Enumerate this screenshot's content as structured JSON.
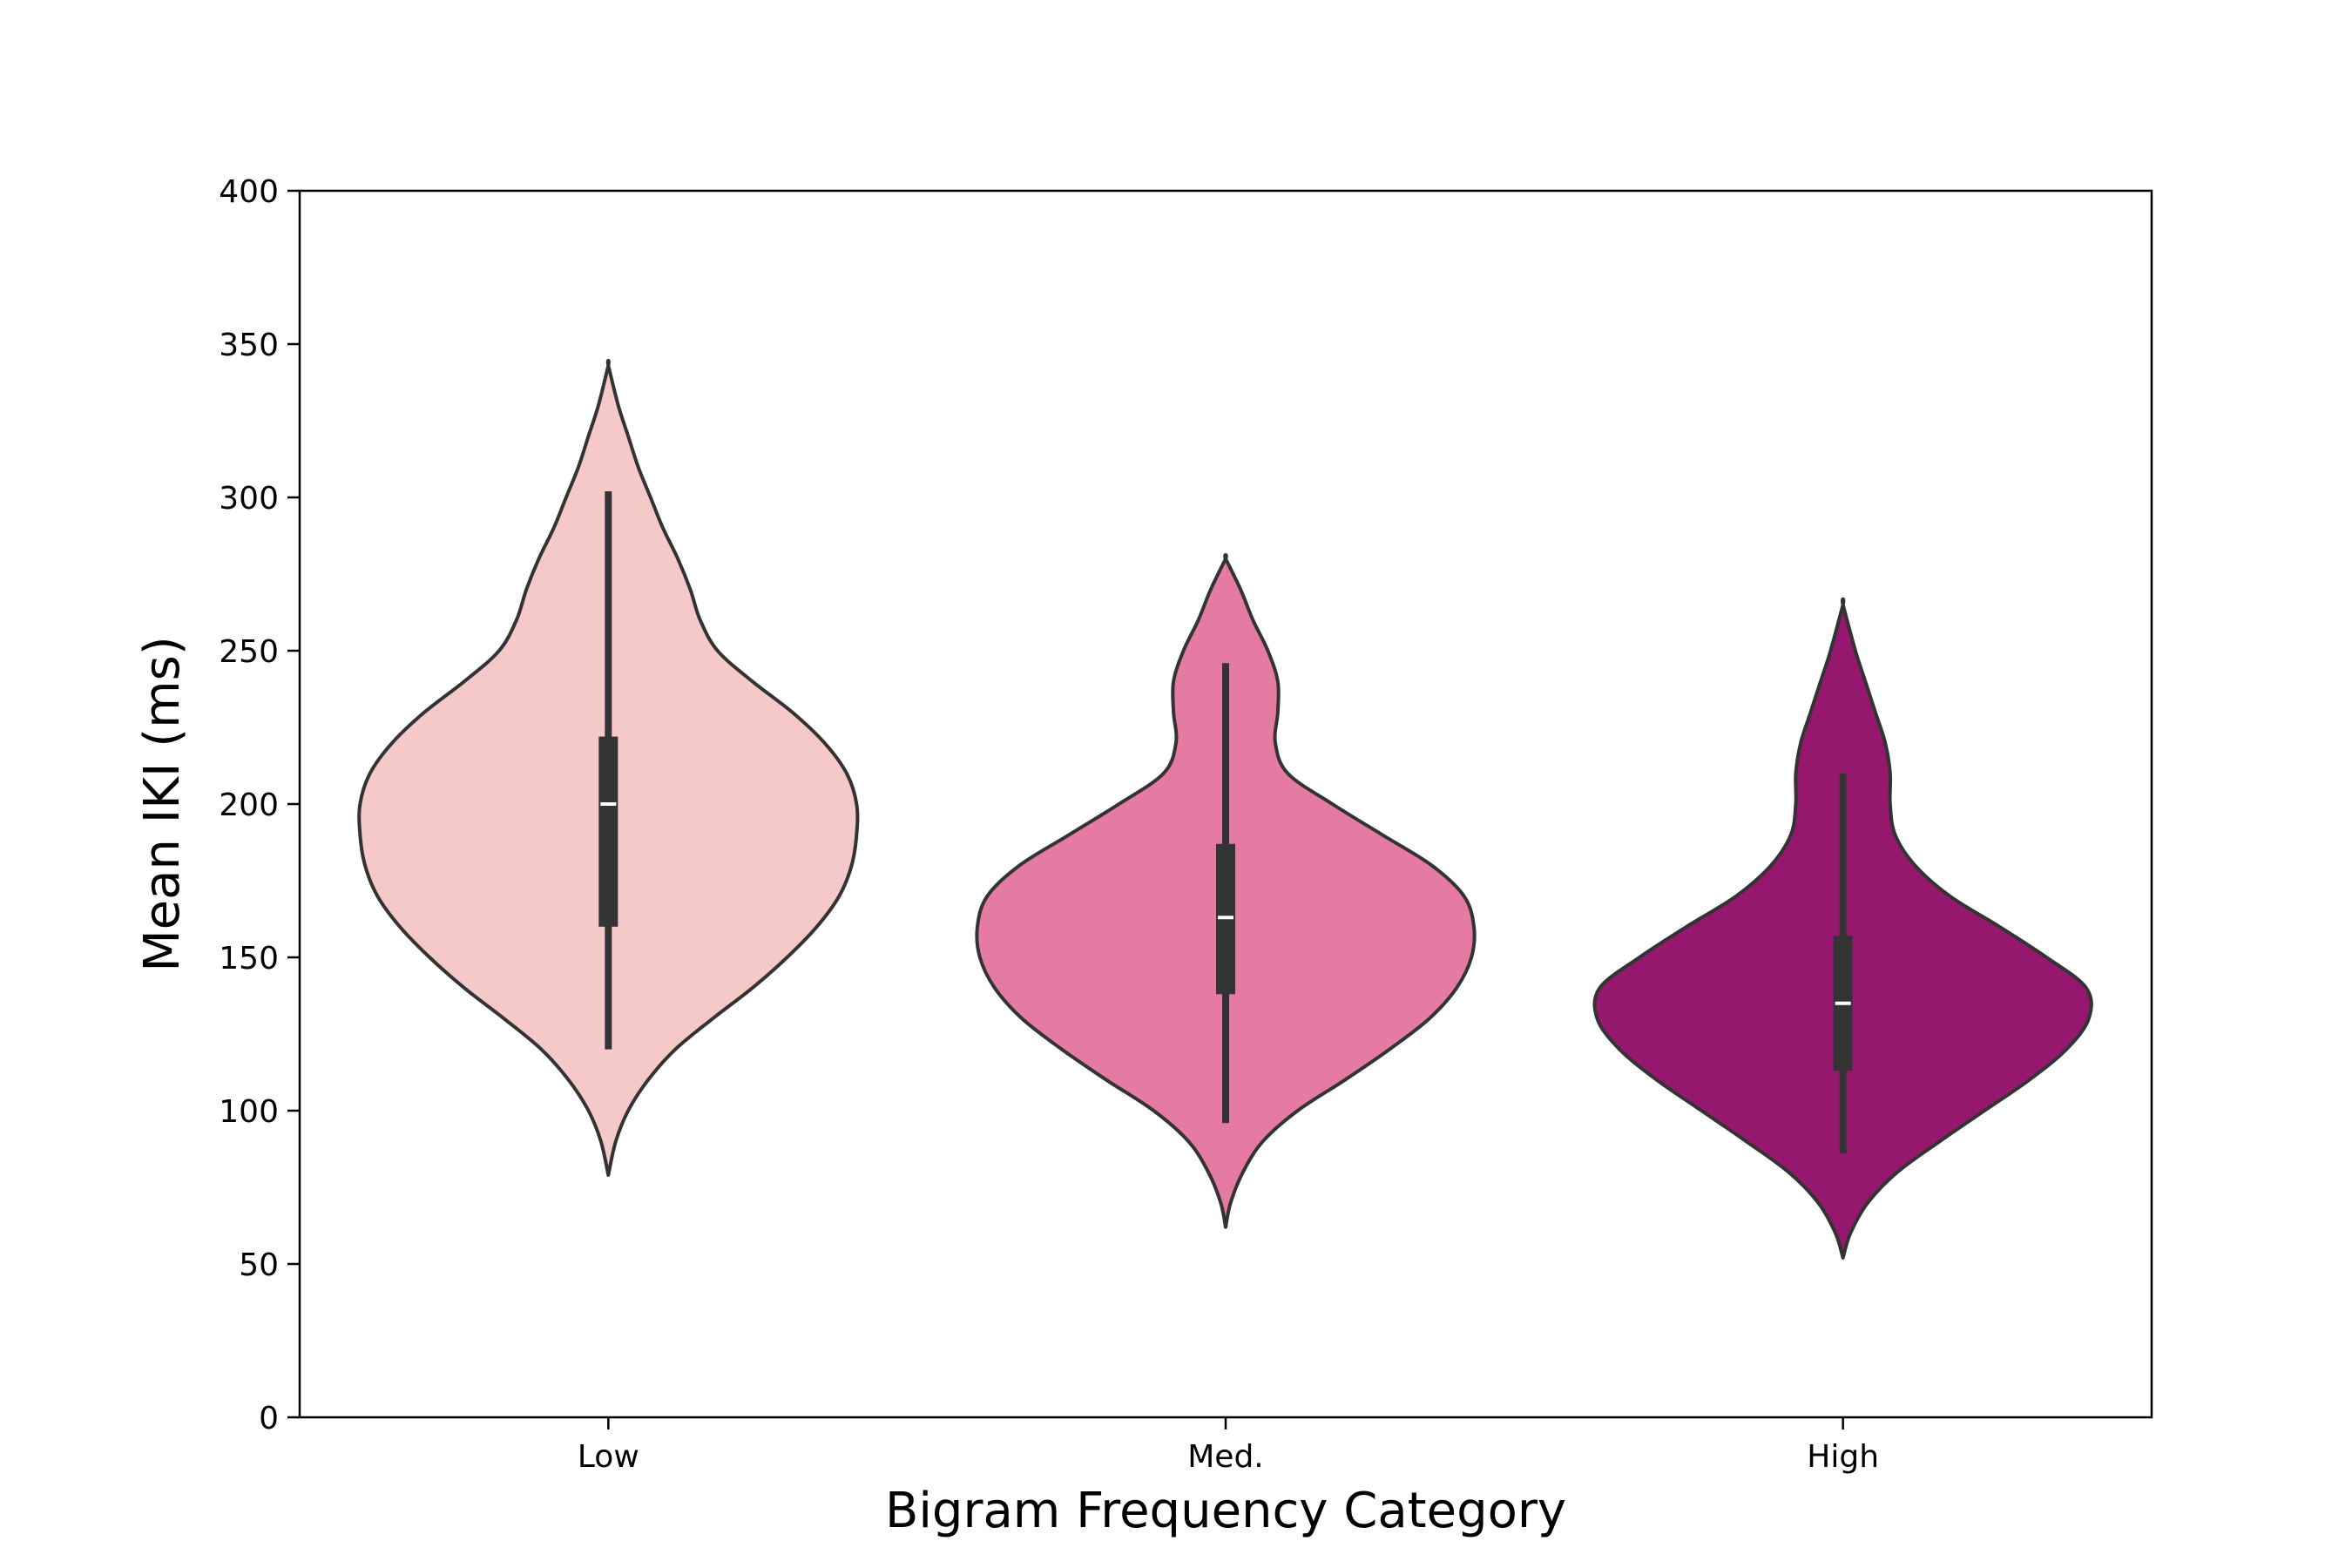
{
  "chart_data": {
    "type": "violin",
    "title": "",
    "xlabel": "Bigram Frequency Category",
    "ylabel": "Mean IKI (ms)",
    "ylim": [
      0,
      400
    ],
    "yticks": [
      0,
      50,
      100,
      150,
      200,
      250,
      300,
      350,
      400
    ],
    "categories": [
      "Low",
      "Med.",
      "High"
    ],
    "grid": false,
    "legend": "none",
    "series": [
      {
        "category": "Low",
        "color": "#f4c9c7",
        "min": 79,
        "max": 343,
        "median": 200,
        "q1": 160,
        "q3": 222,
        "whisker_low": 120,
        "whisker_high": 302,
        "density": [
          [
            79,
            0
          ],
          [
            90,
            0.03
          ],
          [
            100,
            0.08
          ],
          [
            110,
            0.16
          ],
          [
            120,
            0.27
          ],
          [
            130,
            0.42
          ],
          [
            140,
            0.58
          ],
          [
            150,
            0.72
          ],
          [
            160,
            0.84
          ],
          [
            170,
            0.93
          ],
          [
            180,
            0.98
          ],
          [
            190,
            1.0
          ],
          [
            200,
            1.0
          ],
          [
            210,
            0.96
          ],
          [
            220,
            0.87
          ],
          [
            230,
            0.74
          ],
          [
            240,
            0.58
          ],
          [
            250,
            0.44
          ],
          [
            260,
            0.37
          ],
          [
            270,
            0.33
          ],
          [
            280,
            0.28
          ],
          [
            290,
            0.22
          ],
          [
            300,
            0.17
          ],
          [
            310,
            0.12
          ],
          [
            320,
            0.08
          ],
          [
            330,
            0.04
          ],
          [
            343,
            0
          ]
        ]
      },
      {
        "category": "Med.",
        "color": "#e57aa3",
        "min": 62,
        "max": 280,
        "median": 163,
        "q1": 138,
        "q3": 187,
        "whisker_low": 96,
        "whisker_high": 246,
        "density": [
          [
            62,
            0
          ],
          [
            70,
            0.02
          ],
          [
            80,
            0.07
          ],
          [
            90,
            0.15
          ],
          [
            100,
            0.29
          ],
          [
            110,
            0.48
          ],
          [
            120,
            0.66
          ],
          [
            130,
            0.82
          ],
          [
            140,
            0.93
          ],
          [
            150,
            0.99
          ],
          [
            160,
            1.0
          ],
          [
            170,
            0.96
          ],
          [
            180,
            0.83
          ],
          [
            190,
            0.63
          ],
          [
            200,
            0.43
          ],
          [
            210,
            0.25
          ],
          [
            220,
            0.2
          ],
          [
            230,
            0.21
          ],
          [
            240,
            0.21
          ],
          [
            250,
            0.17
          ],
          [
            260,
            0.11
          ],
          [
            270,
            0.06
          ],
          [
            280,
            0
          ]
        ]
      },
      {
        "category": "High",
        "color": "#96176e",
        "min": 52,
        "max": 265,
        "median": 135,
        "q1": 113,
        "q3": 157,
        "whisker_low": 86,
        "whisker_high": 210,
        "density": [
          [
            52,
            0
          ],
          [
            60,
            0.03
          ],
          [
            70,
            0.1
          ],
          [
            80,
            0.22
          ],
          [
            90,
            0.39
          ],
          [
            100,
            0.57
          ],
          [
            110,
            0.75
          ],
          [
            120,
            0.9
          ],
          [
            130,
            0.99
          ],
          [
            140,
            0.98
          ],
          [
            150,
            0.82
          ],
          [
            160,
            0.63
          ],
          [
            170,
            0.43
          ],
          [
            180,
            0.29
          ],
          [
            190,
            0.21
          ],
          [
            200,
            0.19
          ],
          [
            210,
            0.19
          ],
          [
            220,
            0.17
          ],
          [
            230,
            0.13
          ],
          [
            240,
            0.09
          ],
          [
            250,
            0.05
          ],
          [
            265,
            0
          ]
        ]
      }
    ]
  }
}
